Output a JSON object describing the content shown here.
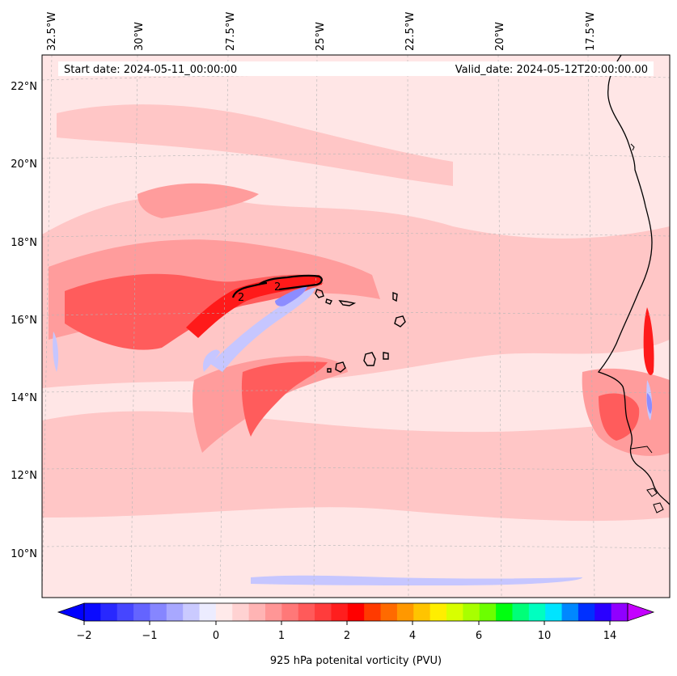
{
  "figure": {
    "start_date_text": "Start date: 2024-05-11_00:00:00",
    "valid_date_text": "Valid_date: 2024-05-12T20:00:00.00"
  },
  "axes": {
    "lon_labels": [
      "32.5°W",
      "30°W",
      "27.5°W",
      "25°W",
      "22.5°W",
      "20°W",
      "17.5°W"
    ],
    "lat_labels": [
      "22°N",
      "20°N",
      "18°N",
      "16°N",
      "14°N",
      "12°N",
      "10°N"
    ]
  },
  "contour_labels": [
    "2",
    "2"
  ],
  "colorbar": {
    "title": "925 hPa potenital vorticity (PVU)",
    "tick_labels": [
      "−2",
      "−1",
      "0",
      "1",
      "2",
      "4",
      "6",
      "10",
      "14"
    ],
    "colors": [
      "#0a0aff",
      "#2828ff",
      "#4646ff",
      "#6464ff",
      "#8686ff",
      "#a8a8ff",
      "#cacaff",
      "#ececff",
      "#ffeaea",
      "#ffd2d2",
      "#ffb4b4",
      "#ff9696",
      "#ff7878",
      "#ff5a5a",
      "#ff3c3c",
      "#ff1e1e",
      "#ff0000",
      "#ff3a00",
      "#ff6a00",
      "#ff9800",
      "#ffc400",
      "#ffee00",
      "#d8ff00",
      "#a8ff00",
      "#6cff00",
      "#00ff10",
      "#00ff78",
      "#00ffc0",
      "#00e4ff",
      "#0088ff",
      "#0030ff",
      "#2a00ff",
      "#9000ff"
    ],
    "under_color": "#0000ff",
    "over_color": "#c400ff"
  },
  "colors": {
    "background_pv": "#ffe6e6",
    "low_pv": "#ffc6c6",
    "mid_pv": "#ff9c9c",
    "high_pv": "#ff5c5c",
    "max_pv": "#ff1a1a",
    "neg_pv": "#c6c6ff",
    "neg_strong_pv": "#8c8cff",
    "coast": "#000000"
  }
}
